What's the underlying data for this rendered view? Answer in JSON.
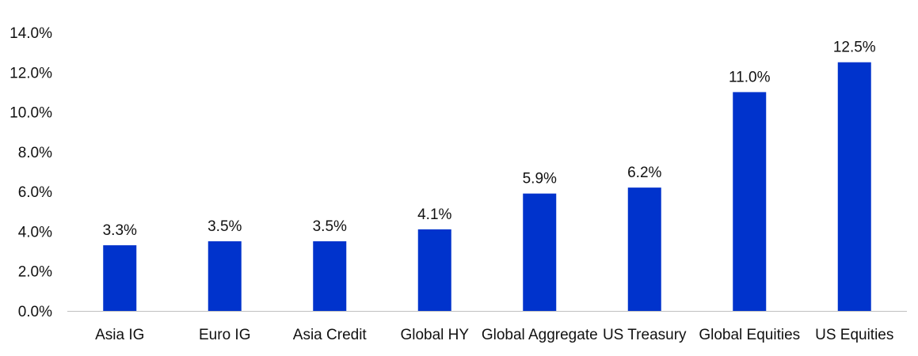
{
  "chart_data": {
    "type": "bar",
    "title": "",
    "xlabel": "",
    "ylabel": "",
    "categories": [
      "Asia IG",
      "Euro IG",
      "Asia Credit",
      "Global HY",
      "Global Aggregate",
      "US Treasury",
      "Global Equities",
      "US Equities"
    ],
    "values": [
      3.3,
      3.5,
      3.5,
      4.1,
      5.9,
      6.2,
      11.0,
      12.5
    ],
    "value_labels": [
      "3.3%",
      "3.5%",
      "3.5%",
      "4.1%",
      "5.9%",
      "6.2%",
      "11.0%",
      "12.5%"
    ],
    "ylim": [
      0,
      14
    ],
    "yticks": [
      0,
      2,
      4,
      6,
      8,
      10,
      12,
      14
    ],
    "ytick_labels": [
      "0.0%",
      "2.0%",
      "4.0%",
      "6.0%",
      "8.0%",
      "10.0%",
      "12.0%",
      "14.0%"
    ],
    "grid": false,
    "bar_color": "#0033cc"
  }
}
